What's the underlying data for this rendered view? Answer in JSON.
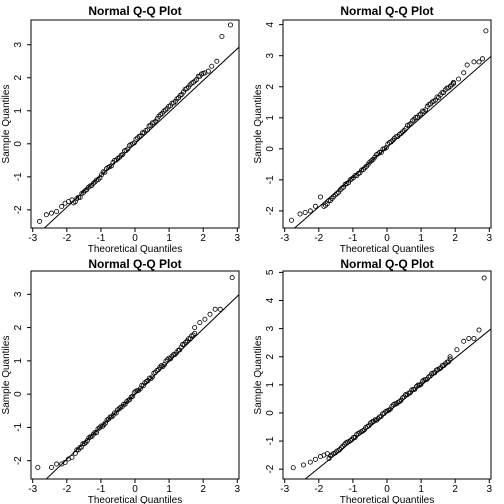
{
  "figure": {
    "background": "#ffffff",
    "ink": "#000000"
  },
  "chart_data": [
    {
      "type": "scatter",
      "title": "Normal Q-Q Plot",
      "xlabel": "Theoretical Quantiles",
      "ylabel": "Sample Quantiles",
      "xlim": [
        -3.05,
        3.05
      ],
      "ylim": [
        -2.55,
        3.75
      ],
      "xticks": [
        -3,
        -2,
        -1,
        0,
        1,
        2,
        3
      ],
      "yticks": [
        -2,
        -1,
        0,
        1,
        2,
        3
      ],
      "ref_line": {
        "intercept": 0.0,
        "slope": 0.96
      },
      "tails": {
        "low": [
          [
            -2.8,
            -2.35
          ],
          [
            -2.6,
            -2.15
          ],
          [
            -2.45,
            -2.1
          ],
          [
            -2.3,
            -2.05
          ],
          [
            -2.15,
            -1.9
          ],
          [
            -2.05,
            -1.8
          ],
          [
            -1.95,
            -1.75
          ],
          [
            -1.85,
            -1.7
          ]
        ],
        "high": [
          [
            2.05,
            2.15
          ],
          [
            2.15,
            2.2
          ],
          [
            2.25,
            2.35
          ],
          [
            2.4,
            2.5
          ],
          [
            2.55,
            3.25
          ],
          [
            2.8,
            3.6
          ]
        ]
      },
      "body": {
        "from": -1.8,
        "to": 2.0,
        "n": 80,
        "slope": 1.04,
        "intercept": 0.08,
        "wiggle": 0.04,
        "seed": 1
      }
    },
    {
      "type": "scatter",
      "title": "Normal Q-Q Plot",
      "xlabel": "Theoretical Quantiles",
      "ylabel": "Sample Quantiles",
      "xlim": [
        -3.05,
        3.05
      ],
      "ylim": [
        -2.55,
        4.15
      ],
      "xticks": [
        -3,
        -2,
        -1,
        0,
        1,
        2,
        3
      ],
      "yticks": [
        -2,
        -1,
        0,
        1,
        2,
        3,
        4
      ],
      "ref_line": {
        "intercept": 0.05,
        "slope": 0.96
      },
      "tails": {
        "low": [
          [
            -2.8,
            -2.3
          ],
          [
            -2.55,
            -2.1
          ],
          [
            -2.4,
            -2.05
          ],
          [
            -2.25,
            -2.0
          ],
          [
            -2.1,
            -1.85
          ],
          [
            -1.95,
            -1.55
          ]
        ],
        "high": [
          [
            1.95,
            2.1
          ],
          [
            2.1,
            2.25
          ],
          [
            2.25,
            2.45
          ],
          [
            2.35,
            2.7
          ],
          [
            2.55,
            2.8
          ],
          [
            2.7,
            2.8
          ],
          [
            2.8,
            2.9
          ],
          [
            2.9,
            3.8
          ]
        ]
      },
      "body": {
        "from": -1.85,
        "to": 1.95,
        "n": 80,
        "slope": 1.05,
        "intercept": 0.1,
        "wiggle": 0.04,
        "seed": 2
      }
    },
    {
      "type": "scatter",
      "title": "Normal Q-Q Plot",
      "xlabel": "Theoretical Quantiles",
      "ylabel": "Sample Quantiles",
      "xlim": [
        -3.05,
        3.05
      ],
      "ylim": [
        -2.55,
        3.7
      ],
      "xticks": [
        -3,
        -2,
        -1,
        0,
        1,
        2,
        3
      ],
      "yticks": [
        -2,
        -1,
        0,
        1,
        2,
        3
      ],
      "ref_line": {
        "intercept": 0.0,
        "slope": 0.98
      },
      "tails": {
        "low": [
          [
            -2.85,
            -2.2
          ],
          [
            -2.45,
            -2.2
          ],
          [
            -2.3,
            -2.1
          ],
          [
            -2.15,
            -2.1
          ],
          [
            -2.05,
            -2.05
          ],
          [
            -1.95,
            -1.95
          ],
          [
            -1.85,
            -1.9
          ]
        ],
        "high": [
          [
            1.75,
            2.0
          ],
          [
            1.9,
            2.15
          ],
          [
            2.05,
            2.25
          ],
          [
            2.2,
            2.4
          ],
          [
            2.35,
            2.55
          ],
          [
            2.5,
            2.55
          ],
          [
            2.85,
            3.5
          ]
        ]
      },
      "body": {
        "from": -1.75,
        "to": 1.75,
        "n": 80,
        "slope": 1.02,
        "intercept": 0.03,
        "wiggle": 0.04,
        "seed": 3
      }
    },
    {
      "type": "scatter",
      "title": "Normal Q-Q Plot",
      "xlabel": "Theoretical Quantiles",
      "ylabel": "Sample Quantiles",
      "xlim": [
        -3.05,
        3.05
      ],
      "ylim": [
        -2.35,
        5.05
      ],
      "xticks": [
        -3,
        -2,
        -1,
        0,
        1,
        2,
        3
      ],
      "yticks": [
        -2,
        -1,
        0,
        1,
        2,
        3,
        4,
        5
      ],
      "ref_line": {
        "intercept": 0.0,
        "slope": 0.98
      },
      "tails": {
        "low": [
          [
            -2.75,
            -1.95
          ],
          [
            -2.45,
            -1.85
          ],
          [
            -2.25,
            -1.75
          ],
          [
            -2.1,
            -1.65
          ],
          [
            -1.95,
            -1.55
          ],
          [
            -1.85,
            -1.5
          ],
          [
            -1.75,
            -1.45
          ]
        ],
        "high": [
          [
            1.85,
            2.0
          ],
          [
            2.05,
            2.25
          ],
          [
            2.25,
            2.55
          ],
          [
            2.4,
            2.65
          ],
          [
            2.55,
            2.65
          ],
          [
            2.7,
            2.95
          ],
          [
            2.85,
            4.8
          ]
        ]
      },
      "body": {
        "from": -1.7,
        "to": 1.85,
        "n": 80,
        "slope": 0.98,
        "intercept": 0.08,
        "wiggle": 0.04,
        "seed": 4
      }
    }
  ]
}
